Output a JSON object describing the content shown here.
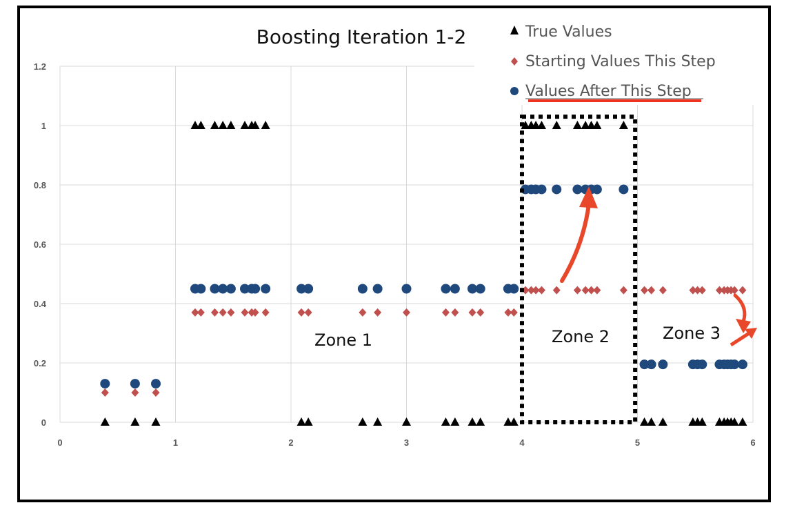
{
  "chart_data": {
    "type": "scatter",
    "title": "Boosting Iteration 1-2",
    "xlim": [
      0,
      6
    ],
    "ylim": [
      0,
      1.2
    ],
    "x_ticks": [
      "0",
      "1",
      "2",
      "3",
      "4",
      "5",
      "6"
    ],
    "y_ticks": [
      "0",
      "0.2",
      "0.4",
      "0.6",
      "0.8",
      "1",
      "1.2"
    ],
    "grid": true,
    "legend_position": "top-right",
    "series": [
      {
        "name": "True Values",
        "marker": "triangle",
        "color": "#000000",
        "points": [
          [
            0.39,
            0
          ],
          [
            0.65,
            0
          ],
          [
            0.83,
            0
          ],
          [
            1.17,
            1
          ],
          [
            1.22,
            1
          ],
          [
            1.34,
            1
          ],
          [
            1.41,
            1
          ],
          [
            1.48,
            1
          ],
          [
            1.6,
            1
          ],
          [
            1.66,
            1
          ],
          [
            1.69,
            1
          ],
          [
            1.78,
            1
          ],
          [
            2.09,
            0
          ],
          [
            2.15,
            0
          ],
          [
            2.62,
            0
          ],
          [
            2.75,
            0
          ],
          [
            3.0,
            0
          ],
          [
            3.34,
            0
          ],
          [
            3.42,
            0
          ],
          [
            3.57,
            0
          ],
          [
            3.64,
            0
          ],
          [
            3.88,
            0
          ],
          [
            3.93,
            0
          ],
          [
            4.03,
            1
          ],
          [
            4.08,
            1
          ],
          [
            4.12,
            1
          ],
          [
            4.17,
            1
          ],
          [
            4.3,
            1
          ],
          [
            4.48,
            1
          ],
          [
            4.55,
            1
          ],
          [
            4.6,
            1
          ],
          [
            4.65,
            1
          ],
          [
            4.88,
            1
          ],
          [
            5.06,
            0
          ],
          [
            5.12,
            0
          ],
          [
            5.22,
            0
          ],
          [
            5.48,
            0
          ],
          [
            5.52,
            0
          ],
          [
            5.56,
            0
          ],
          [
            5.71,
            0
          ],
          [
            5.75,
            0
          ],
          [
            5.78,
            0
          ],
          [
            5.81,
            0
          ],
          [
            5.84,
            0
          ],
          [
            5.91,
            0
          ]
        ]
      },
      {
        "name": "Starting Values This Step",
        "marker": "diamond",
        "color": "#c0504d",
        "points": [
          [
            0.39,
            0.1
          ],
          [
            0.65,
            0.1
          ],
          [
            0.83,
            0.1
          ],
          [
            1.17,
            0.37
          ],
          [
            1.22,
            0.37
          ],
          [
            1.34,
            0.37
          ],
          [
            1.41,
            0.37
          ],
          [
            1.48,
            0.37
          ],
          [
            1.6,
            0.37
          ],
          [
            1.66,
            0.37
          ],
          [
            1.69,
            0.37
          ],
          [
            1.78,
            0.37
          ],
          [
            2.09,
            0.37
          ],
          [
            2.15,
            0.37
          ],
          [
            2.62,
            0.37
          ],
          [
            2.75,
            0.37
          ],
          [
            3.0,
            0.37
          ],
          [
            3.34,
            0.37
          ],
          [
            3.42,
            0.37
          ],
          [
            3.57,
            0.37
          ],
          [
            3.64,
            0.37
          ],
          [
            3.88,
            0.37
          ],
          [
            3.93,
            0.37
          ],
          [
            4.03,
            0.445
          ],
          [
            4.08,
            0.445
          ],
          [
            4.12,
            0.445
          ],
          [
            4.17,
            0.445
          ],
          [
            4.3,
            0.445
          ],
          [
            4.48,
            0.445
          ],
          [
            4.55,
            0.445
          ],
          [
            4.6,
            0.445
          ],
          [
            4.65,
            0.445
          ],
          [
            4.88,
            0.445
          ],
          [
            5.06,
            0.445
          ],
          [
            5.12,
            0.445
          ],
          [
            5.22,
            0.445
          ],
          [
            5.48,
            0.445
          ],
          [
            5.52,
            0.445
          ],
          [
            5.56,
            0.445
          ],
          [
            5.71,
            0.445
          ],
          [
            5.75,
            0.445
          ],
          [
            5.78,
            0.445
          ],
          [
            5.81,
            0.445
          ],
          [
            5.84,
            0.445
          ],
          [
            5.91,
            0.445
          ]
        ]
      },
      {
        "name": "Values After This Step",
        "marker": "circle",
        "color": "#1f497d",
        "points": [
          [
            0.39,
            0.13
          ],
          [
            0.65,
            0.13
          ],
          [
            0.83,
            0.13
          ],
          [
            1.17,
            0.45
          ],
          [
            1.22,
            0.45
          ],
          [
            1.34,
            0.45
          ],
          [
            1.41,
            0.45
          ],
          [
            1.48,
            0.45
          ],
          [
            1.6,
            0.45
          ],
          [
            1.66,
            0.45
          ],
          [
            1.69,
            0.45
          ],
          [
            1.78,
            0.45
          ],
          [
            2.09,
            0.45
          ],
          [
            2.15,
            0.45
          ],
          [
            2.62,
            0.45
          ],
          [
            2.75,
            0.45
          ],
          [
            3.0,
            0.45
          ],
          [
            3.34,
            0.45
          ],
          [
            3.42,
            0.45
          ],
          [
            3.57,
            0.45
          ],
          [
            3.64,
            0.45
          ],
          [
            3.88,
            0.45
          ],
          [
            3.93,
            0.45
          ],
          [
            4.03,
            0.785
          ],
          [
            4.08,
            0.785
          ],
          [
            4.12,
            0.785
          ],
          [
            4.17,
            0.785
          ],
          [
            4.3,
            0.785
          ],
          [
            4.48,
            0.785
          ],
          [
            4.55,
            0.785
          ],
          [
            4.6,
            0.785
          ],
          [
            4.65,
            0.785
          ],
          [
            4.88,
            0.785
          ],
          [
            5.06,
            0.195
          ],
          [
            5.12,
            0.195
          ],
          [
            5.22,
            0.195
          ],
          [
            5.48,
            0.195
          ],
          [
            5.52,
            0.195
          ],
          [
            5.56,
            0.195
          ],
          [
            5.71,
            0.195
          ],
          [
            5.75,
            0.195
          ],
          [
            5.78,
            0.195
          ],
          [
            5.81,
            0.195
          ],
          [
            5.84,
            0.195
          ],
          [
            5.91,
            0.195
          ]
        ]
      }
    ],
    "annotations": {
      "zones": [
        {
          "label": "Zone 1"
        },
        {
          "label": "Zone 2",
          "x_start": 4.0,
          "x_end": 4.98,
          "y_top": 1.03
        },
        {
          "label": "Zone 3"
        }
      ],
      "highlighted_legend_entry": "Values After This Step",
      "arrow_color": "#e8472a",
      "underline_color": "#ee3322"
    }
  }
}
